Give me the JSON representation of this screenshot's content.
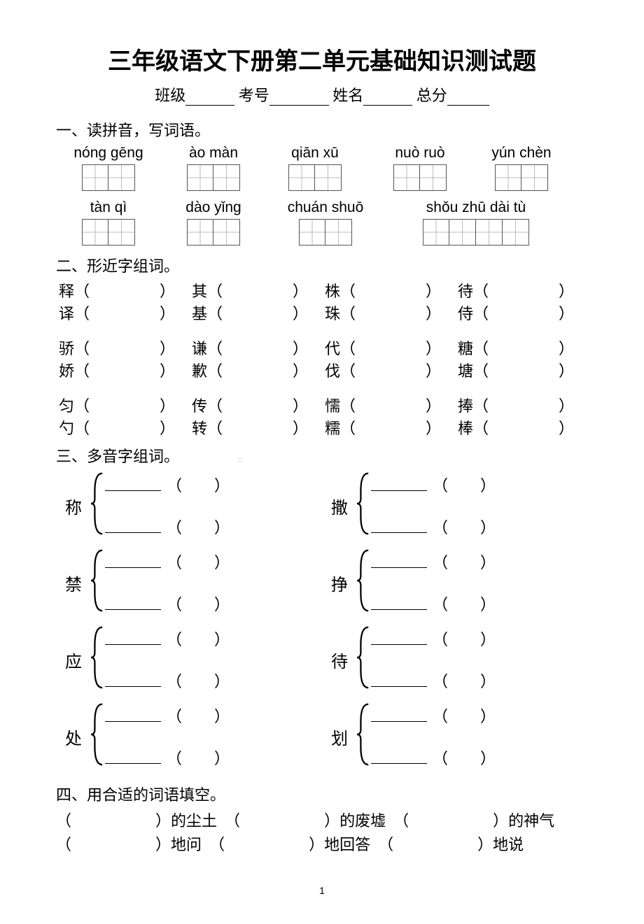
{
  "title": "三年级语文下册第二单元基础知识测试题",
  "info": {
    "class_label": "班级",
    "exam_no_label": "考号",
    "name_label": "姓名",
    "total_label": "总分"
  },
  "section1": {
    "heading": "一、读拼音，写词语。",
    "row1": [
      {
        "pinyin": "nóng gēng",
        "boxes": 2
      },
      {
        "pinyin": "ào màn",
        "boxes": 2
      },
      {
        "pinyin": "qiān xū",
        "boxes": 2
      },
      {
        "pinyin": "nuò ruò",
        "boxes": 2
      },
      {
        "pinyin": "yún chèn",
        "boxes": 2
      }
    ],
    "row2": [
      {
        "pinyin": "tàn qì",
        "boxes": 2
      },
      {
        "pinyin": "dào yǐng",
        "boxes": 2
      },
      {
        "pinyin": "chuán shuō",
        "boxes": 2
      },
      {
        "pinyin": "shǒu zhū  dài tù",
        "boxes": 4
      }
    ]
  },
  "section2": {
    "heading": "二、形近字组词。",
    "groups": [
      [
        [
          "释",
          "译"
        ],
        [
          "其",
          "基"
        ],
        [
          "株",
          "珠"
        ],
        [
          "待",
          "侍"
        ]
      ],
      [
        [
          "骄",
          "娇"
        ],
        [
          "谦",
          "歉"
        ],
        [
          "代",
          "伐"
        ],
        [
          "糖",
          "塘"
        ]
      ],
      [
        [
          "匀",
          "勺"
        ],
        [
          "传",
          "转"
        ],
        [
          "懦",
          "糯"
        ],
        [
          "捧",
          "棒"
        ]
      ]
    ]
  },
  "section3": {
    "heading": "三、多音字组词。",
    "pairs": [
      [
        "称",
        "撒"
      ],
      [
        "禁",
        "挣"
      ],
      [
        "应",
        "待"
      ],
      [
        "处",
        "划"
      ]
    ]
  },
  "section4": {
    "heading": "四、用合适的词语填空。",
    "rows": [
      [
        "的尘土",
        "的废墟",
        "的神气"
      ],
      [
        "地问",
        "地回答",
        "地说"
      ]
    ]
  },
  "page_number": "1",
  "watermark": "::"
}
